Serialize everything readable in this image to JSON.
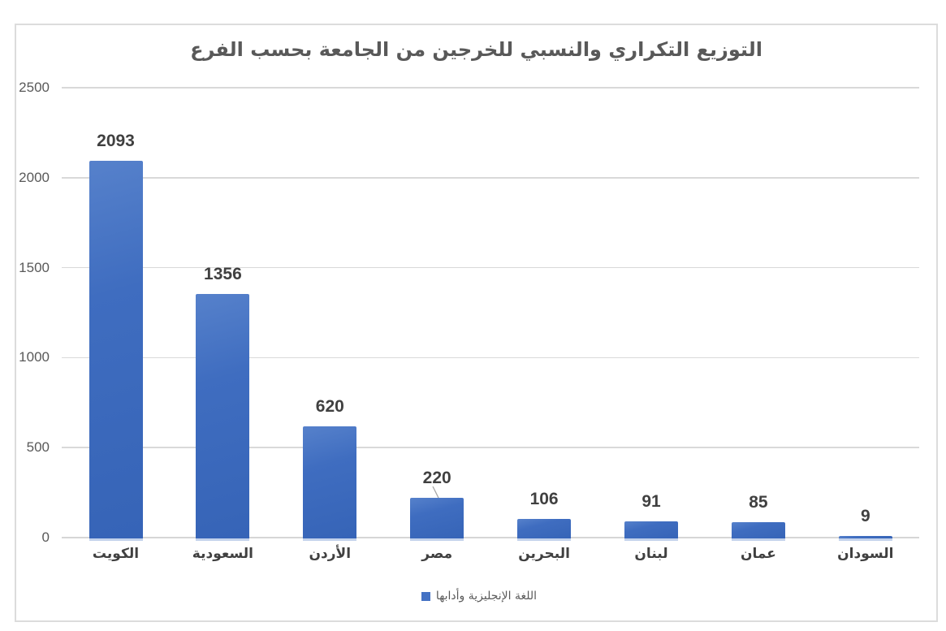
{
  "title": "التوزيع التكراري والنسبي للخرجين من الجامعة بحسب الفرع",
  "legend": {
    "label": "اللغة الإنجليزية وأدابها",
    "marker_color": "#4472c4"
  },
  "chart_data": {
    "type": "bar",
    "title": "التوزيع التكراري والنسبي للخرجين من الجامعة بحسب الفرع",
    "categories": [
      "الكويت",
      "السعودية",
      "الأردن",
      "مصر",
      "البحرين",
      "لبنان",
      "عمان",
      "السودان"
    ],
    "values": [
      2093,
      1356,
      620,
      220,
      106,
      91,
      85,
      9
    ],
    "series": [
      {
        "name": "اللغة الإنجليزية وأدابها",
        "values": [
          2093,
          1356,
          620,
          220,
          106,
          91,
          85,
          9
        ]
      }
    ],
    "yticks": [
      0,
      500,
      1000,
      1500,
      2000,
      2500
    ],
    "ylim": [
      0,
      2500
    ],
    "xlabel": "",
    "ylabel": "",
    "grid": true,
    "legend_position": "bottom",
    "bar_color": "#4472c4",
    "bar_base_color": "#c3d2ec",
    "gridline_color": "#d9d9d9",
    "value_label_color": "#404040",
    "axis_label_color": "#595959",
    "callout_category": "مصر"
  }
}
